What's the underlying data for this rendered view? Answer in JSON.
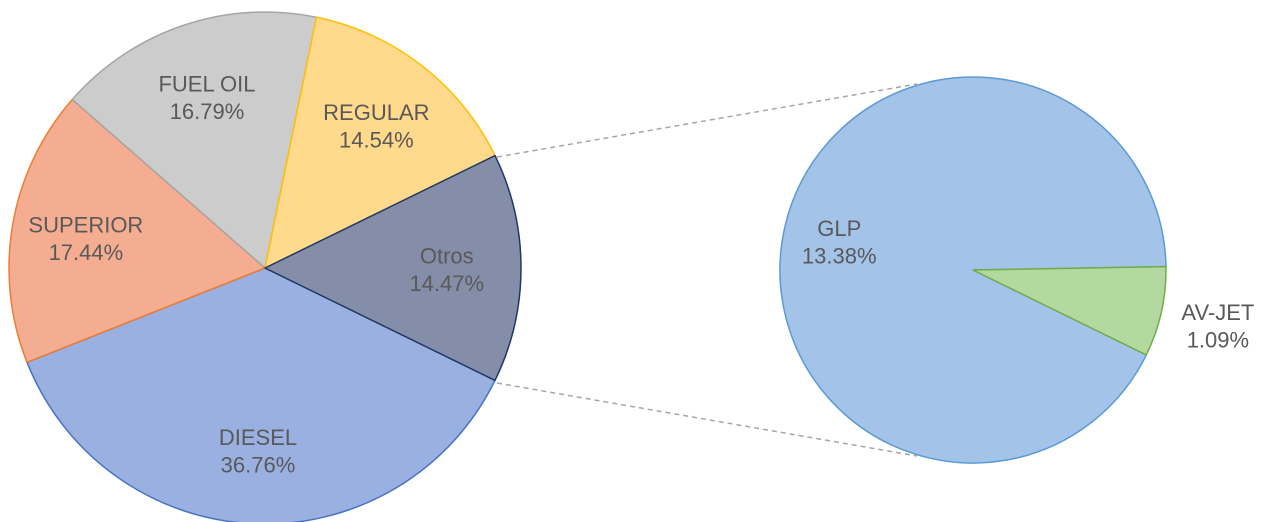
{
  "chart_data": [
    {
      "type": "pie",
      "categories": [
        "DIESEL",
        "SUPERIOR",
        "FUEL OIL",
        "REGULAR",
        "Otros"
      ],
      "values": [
        36.76,
        17.44,
        16.79,
        14.54,
        14.47
      ],
      "value_labels": [
        "36.76%",
        "17.44%",
        "16.79%",
        "14.54%",
        "14.47%"
      ],
      "colors": [
        "#99b0e0",
        "#f5ad91",
        "#cccccc",
        "#ffd98c",
        "#858ea8"
      ],
      "edge_colors": [
        "#4472c4",
        "#ed7d31",
        "#a5a5a5",
        "#ffc000",
        "#203864"
      ]
    },
    {
      "type": "pie",
      "categories": [
        "GLP",
        "AV-JET"
      ],
      "values": [
        13.38,
        1.09
      ],
      "value_labels": [
        "13.38%",
        "1.09%"
      ],
      "colors": [
        "#a3c4e8",
        "#b3d9a0"
      ],
      "edge_colors": [
        "#5b9bd5",
        "#70ad47"
      ]
    }
  ]
}
